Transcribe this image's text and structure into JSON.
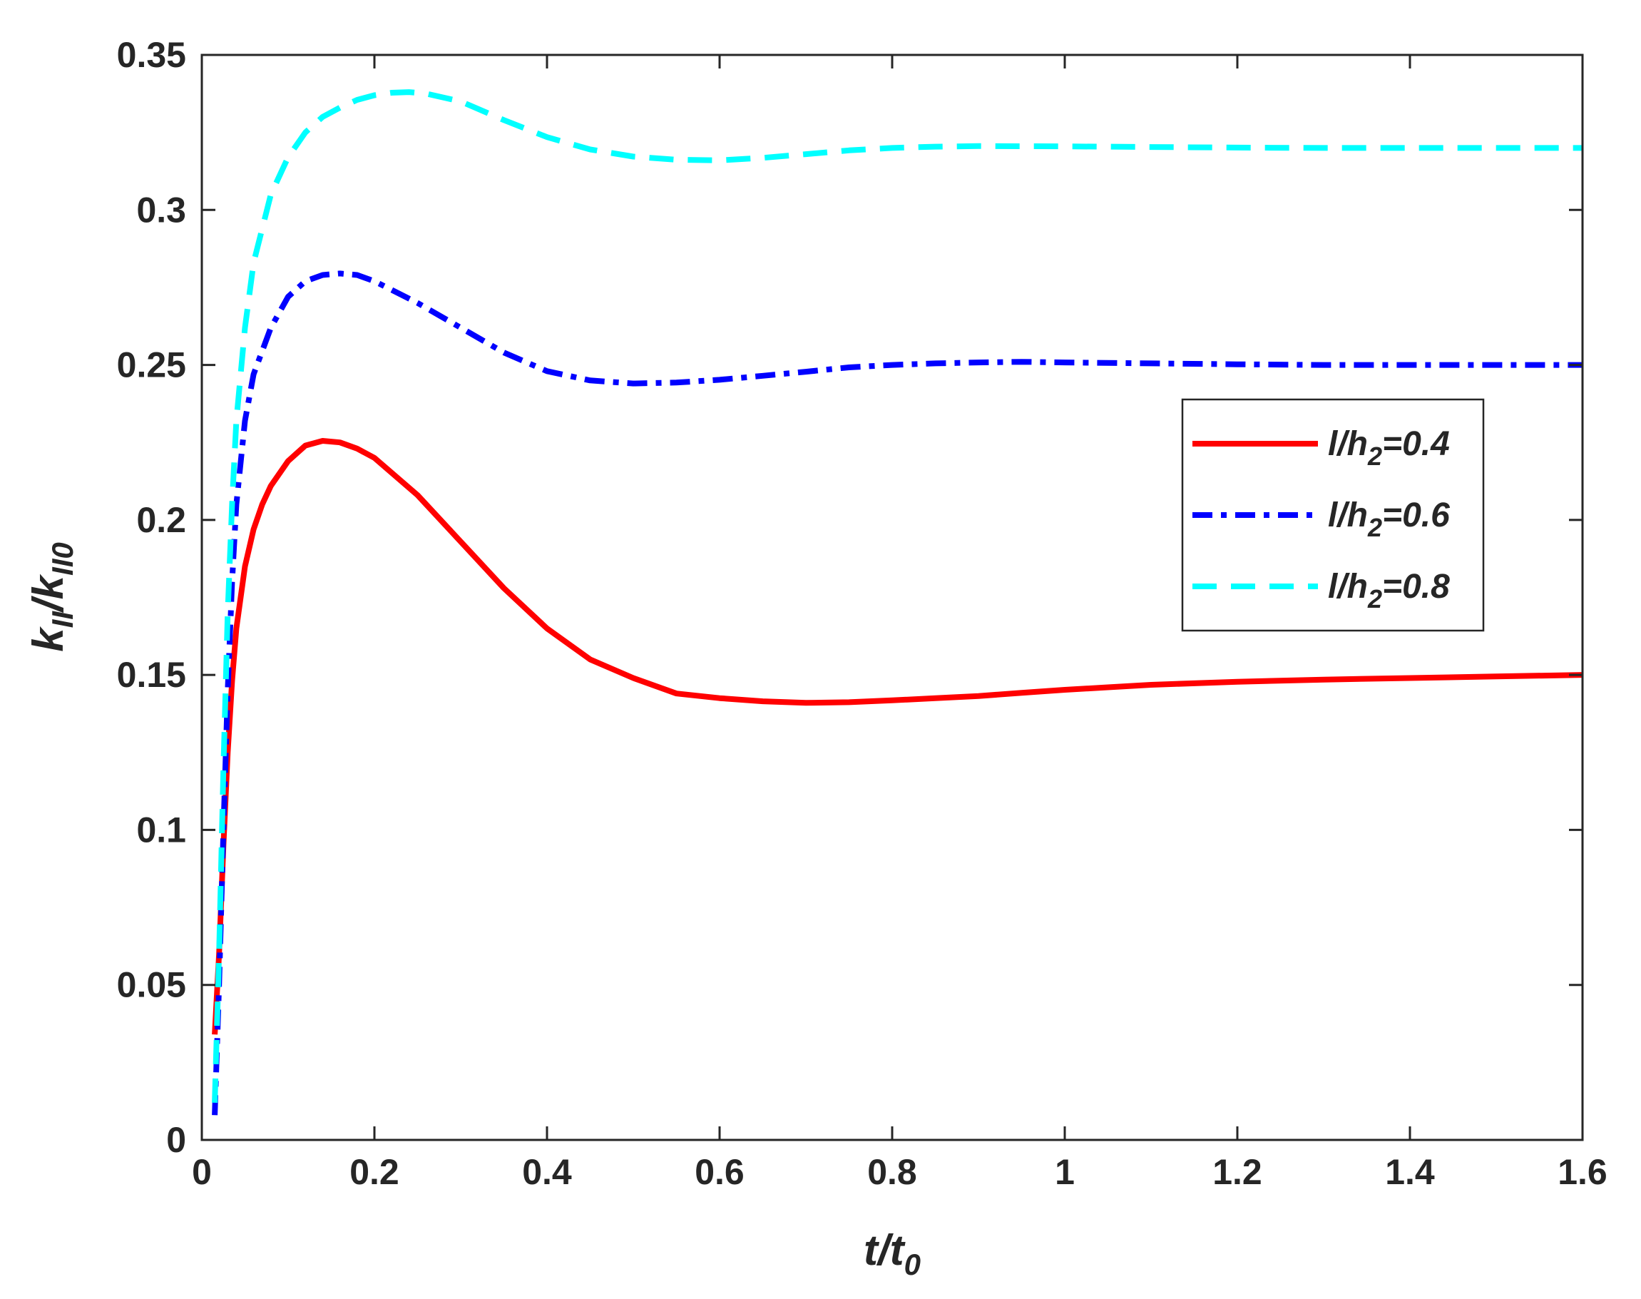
{
  "chart_data": {
    "type": "line",
    "xlabel": {
      "main": "t/t",
      "sub": "0"
    },
    "ylabel": {
      "p1": "k",
      "s1": "II",
      "p2": "/k",
      "s2": "II0"
    },
    "xlim": [
      0,
      1.6
    ],
    "ylim": [
      0,
      0.35
    ],
    "xticks": [
      0,
      0.2,
      0.4,
      0.6,
      0.8,
      1,
      1.2,
      1.4,
      1.6
    ],
    "yticks": [
      0,
      0.05,
      0.1,
      0.15,
      0.2,
      0.25,
      0.3,
      0.35
    ],
    "xtick_labels": [
      "0",
      "0.2",
      "0.4",
      "0.6",
      "0.8",
      "1",
      "1.2",
      "1.4",
      "1.6"
    ],
    "ytick_labels": [
      "0",
      "0.05",
      "0.1",
      "0.15",
      "0.2",
      "0.25",
      "0.3",
      "0.35"
    ],
    "grid": false,
    "legend_position": "right",
    "series": [
      {
        "name": "l/h2=0.4",
        "label": {
          "pre": "l/h",
          "sub": "2",
          "post": "=0.4"
        },
        "color": "#ff0000",
        "dash": "solid",
        "x": [
          0.015,
          0.02,
          0.025,
          0.03,
          0.035,
          0.04,
          0.05,
          0.06,
          0.07,
          0.08,
          0.1,
          0.12,
          0.14,
          0.16,
          0.18,
          0.2,
          0.25,
          0.3,
          0.35,
          0.4,
          0.45,
          0.5,
          0.55,
          0.6,
          0.65,
          0.7,
          0.75,
          0.8,
          0.85,
          0.9,
          0.95,
          1.0,
          1.05,
          1.1,
          1.2,
          1.3,
          1.4,
          1.5,
          1.6
        ],
        "y": [
          0.034,
          0.06,
          0.095,
          0.125,
          0.148,
          0.165,
          0.185,
          0.197,
          0.205,
          0.211,
          0.219,
          0.224,
          0.2255,
          0.225,
          0.223,
          0.22,
          0.208,
          0.193,
          0.178,
          0.165,
          0.155,
          0.149,
          0.144,
          0.1425,
          0.1415,
          0.141,
          0.1412,
          0.1418,
          0.1425,
          0.1432,
          0.1442,
          0.1452,
          0.146,
          0.1468,
          0.1478,
          0.1485,
          0.149,
          0.1495,
          0.15
        ]
      },
      {
        "name": "l/h2=0.6",
        "label": {
          "pre": "l/h",
          "sub": "2",
          "post": "=0.6"
        },
        "color": "#0000ff",
        "dash": "dashdot",
        "x": [
          0.015,
          0.02,
          0.025,
          0.03,
          0.035,
          0.04,
          0.05,
          0.06,
          0.08,
          0.1,
          0.12,
          0.14,
          0.16,
          0.18,
          0.2,
          0.25,
          0.3,
          0.35,
          0.4,
          0.45,
          0.5,
          0.55,
          0.6,
          0.65,
          0.7,
          0.75,
          0.8,
          0.85,
          0.9,
          0.95,
          1.0,
          1.1,
          1.2,
          1.3,
          1.4,
          1.5,
          1.6
        ],
        "y": [
          0.008,
          0.05,
          0.1,
          0.145,
          0.18,
          0.205,
          0.232,
          0.247,
          0.262,
          0.272,
          0.277,
          0.279,
          0.2795,
          0.279,
          0.277,
          0.27,
          0.262,
          0.254,
          0.248,
          0.245,
          0.244,
          0.2443,
          0.2452,
          0.2465,
          0.2478,
          0.2492,
          0.25,
          0.2505,
          0.2508,
          0.251,
          0.2508,
          0.2505,
          0.2502,
          0.25,
          0.25,
          0.25,
          0.25
        ]
      },
      {
        "name": "l/h2=0.8",
        "label": {
          "pre": "l/h",
          "sub": "2",
          "post": "=0.8"
        },
        "color": "#00ffff",
        "dash": "dashed",
        "x": [
          0.015,
          0.02,
          0.025,
          0.03,
          0.035,
          0.04,
          0.05,
          0.06,
          0.08,
          0.1,
          0.12,
          0.14,
          0.16,
          0.18,
          0.2,
          0.22,
          0.24,
          0.26,
          0.3,
          0.35,
          0.4,
          0.45,
          0.5,
          0.55,
          0.6,
          0.65,
          0.7,
          0.75,
          0.8,
          0.85,
          0.9,
          1.0,
          1.1,
          1.2,
          1.3,
          1.4,
          1.5,
          1.6
        ],
        "y": [
          0.012,
          0.06,
          0.12,
          0.17,
          0.205,
          0.232,
          0.262,
          0.283,
          0.305,
          0.317,
          0.325,
          0.33,
          0.333,
          0.3355,
          0.337,
          0.3378,
          0.338,
          0.3375,
          0.335,
          0.329,
          0.3235,
          0.3195,
          0.3172,
          0.3162,
          0.316,
          0.3168,
          0.318,
          0.3192,
          0.32,
          0.3204,
          0.3206,
          0.3205,
          0.3203,
          0.3201,
          0.32,
          0.32,
          0.32,
          0.32
        ]
      }
    ]
  }
}
